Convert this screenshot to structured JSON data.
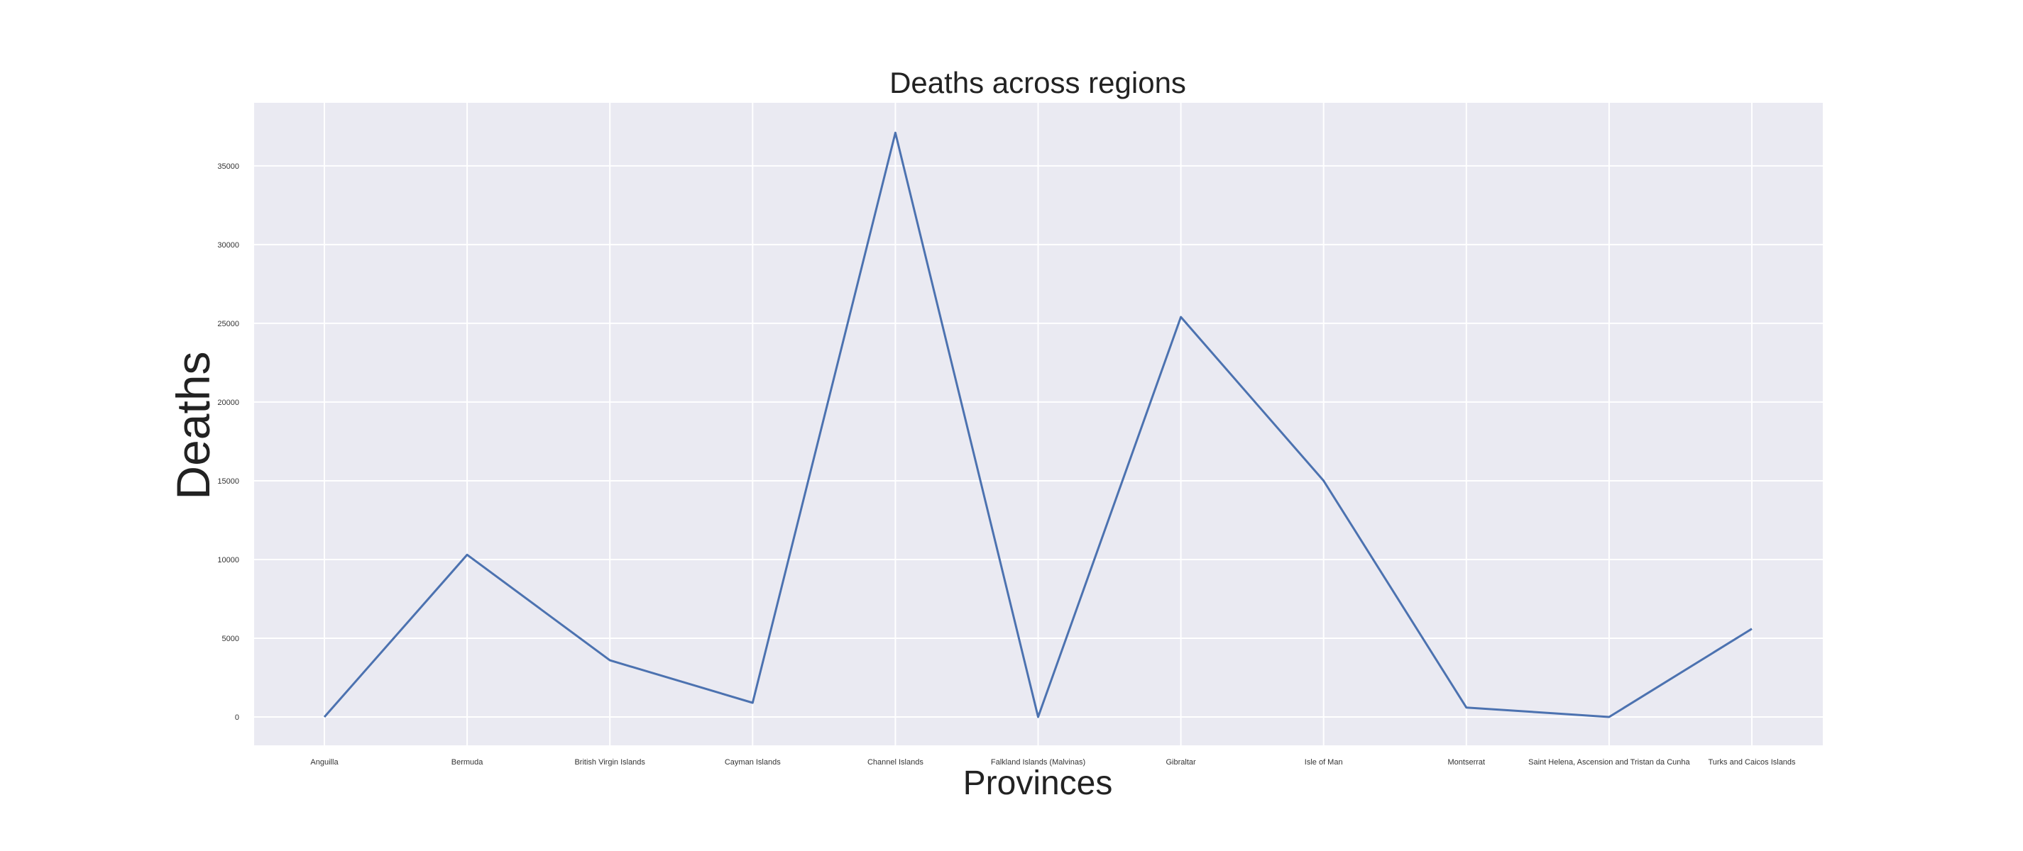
{
  "chart_data": {
    "type": "line",
    "title": "Deaths across regions",
    "xlabel": "Provinces",
    "ylabel": "Deaths",
    "categories": [
      "Anguilla",
      "Bermuda",
      "British Virgin Islands",
      "Cayman Islands",
      "Channel Islands",
      "Falkland Islands (Malvinas)",
      "Gibraltar",
      "Isle of Man",
      "Montserrat",
      "Saint Helena, Ascension and Tristan da Cunha",
      "Turks and Caicos Islands"
    ],
    "series": [
      {
        "values": [
          0,
          10300,
          3600,
          900,
          37100,
          0,
          25400,
          15000,
          600,
          0,
          5600
        ],
        "color": "#4c72b0"
      }
    ],
    "yticks": [
      0,
      5000,
      10000,
      15000,
      20000,
      25000,
      30000,
      35000
    ],
    "ylim": [
      -1800,
      39000
    ],
    "grid": true,
    "background": "#eaeaf2"
  }
}
